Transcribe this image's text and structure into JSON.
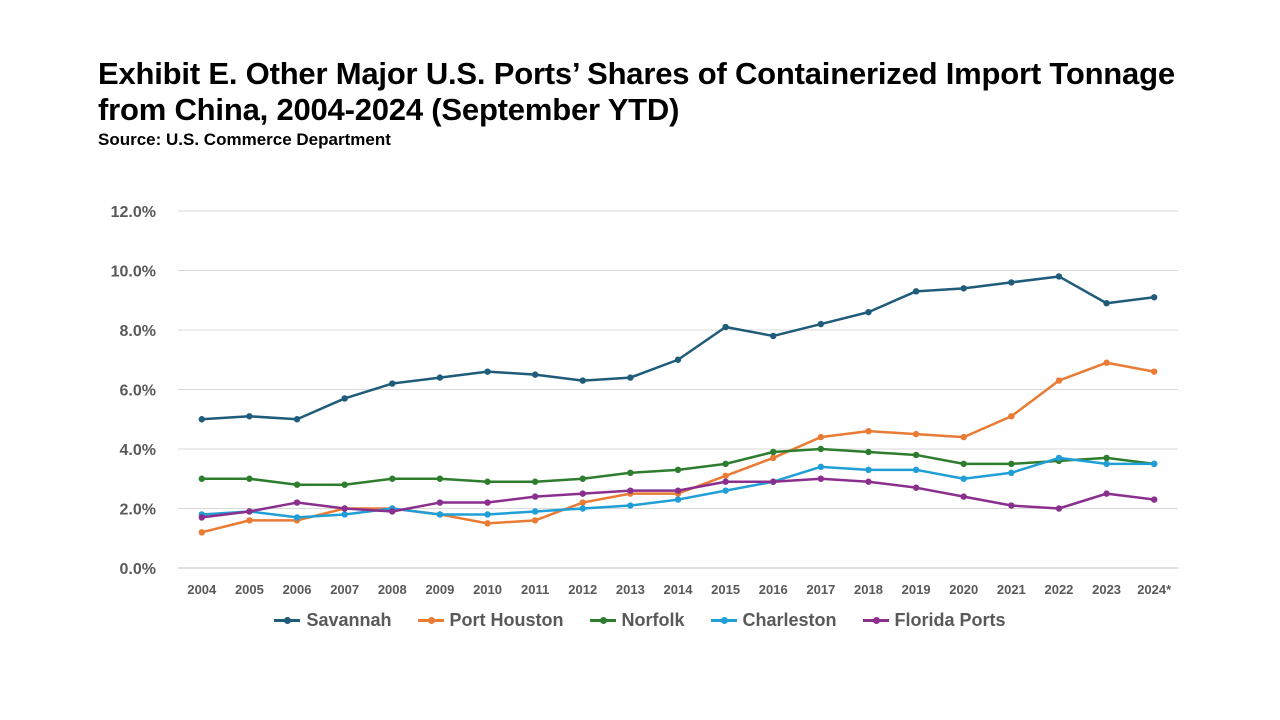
{
  "title": "Exhibit E. Other Major U.S. Ports’ Shares of Containerized Import Tonnage from China, 2004-2024 (September YTD)",
  "source": "Source: U.S. Commerce Department",
  "chart_data": {
    "type": "line",
    "title": "Exhibit E. Other Major U.S. Ports’ Shares of Containerized Import Tonnage from China, 2004-2024 (September YTD)",
    "subtitle": "Source: U.S. Commerce Department",
    "xlabel": "",
    "ylabel": "",
    "ylim": [
      0,
      12
    ],
    "yticks": [
      "0.0%",
      "2.0%",
      "4.0%",
      "6.0%",
      "8.0%",
      "10.0%",
      "12.0%"
    ],
    "grid": true,
    "legend_position": "bottom",
    "categories": [
      "2004",
      "2005",
      "2006",
      "2007",
      "2008",
      "2009",
      "2010",
      "2011",
      "2012",
      "2013",
      "2014",
      "2015",
      "2016",
      "2017",
      "2018",
      "2019",
      "2020",
      "2021",
      "2022",
      "2023",
      "2024*"
    ],
    "series": [
      {
        "name": "Savannah",
        "color": "#1f5c7a",
        "values": [
          5.0,
          5.1,
          5.0,
          5.7,
          6.2,
          6.4,
          6.6,
          6.5,
          6.3,
          6.4,
          7.0,
          8.1,
          7.8,
          8.2,
          8.6,
          9.3,
          9.4,
          9.6,
          9.8,
          8.9,
          9.1
        ]
      },
      {
        "name": "Port Houston",
        "color": "#e97b34",
        "values": [
          1.2,
          1.6,
          1.6,
          2.0,
          2.0,
          1.8,
          1.5,
          1.6,
          2.2,
          2.5,
          2.5,
          3.1,
          3.7,
          4.4,
          4.6,
          4.5,
          4.4,
          5.1,
          6.3,
          6.9,
          6.6
        ]
      },
      {
        "name": "Norfolk",
        "color": "#2e7d2e",
        "values": [
          3.0,
          3.0,
          2.8,
          2.8,
          3.0,
          3.0,
          2.9,
          2.9,
          3.0,
          3.2,
          3.3,
          3.5,
          3.9,
          4.0,
          3.9,
          3.8,
          3.5,
          3.5,
          3.6,
          3.7,
          3.5
        ]
      },
      {
        "name": "Charleston",
        "color": "#1f9fd6",
        "values": [
          1.8,
          1.9,
          1.7,
          1.8,
          2.0,
          1.8,
          1.8,
          1.9,
          2.0,
          2.1,
          2.3,
          2.6,
          2.9,
          3.4,
          3.3,
          3.3,
          3.0,
          3.2,
          3.7,
          3.5,
          3.5
        ]
      },
      {
        "name": "Florida Ports",
        "color": "#8b2f8f",
        "values": [
          1.7,
          1.9,
          2.2,
          2.0,
          1.9,
          2.2,
          2.2,
          2.4,
          2.5,
          2.6,
          2.6,
          2.9,
          2.9,
          3.0,
          2.9,
          2.7,
          2.4,
          2.1,
          2.0,
          2.5,
          2.3
        ]
      }
    ]
  }
}
